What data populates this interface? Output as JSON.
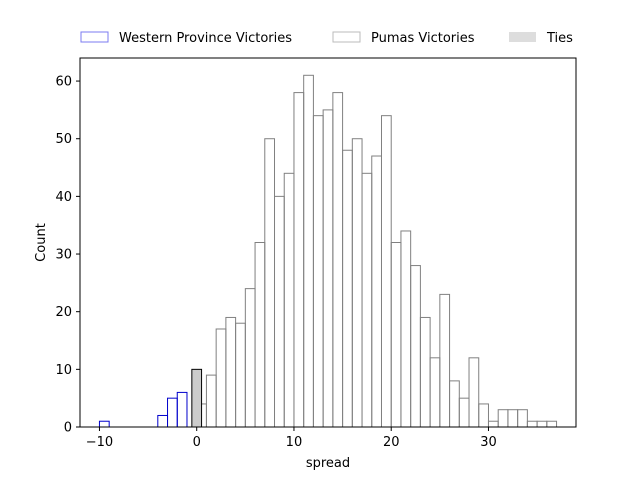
{
  "chart_data": {
    "type": "bar",
    "subtype": "histogram",
    "xlabel": "spread",
    "ylabel": "Count",
    "xlim": [
      -12,
      39
    ],
    "ylim": [
      0,
      64
    ],
    "xticks": [
      -10,
      0,
      10,
      20,
      30
    ],
    "yticks": [
      0,
      10,
      20,
      30,
      40,
      50,
      60
    ],
    "grid": false,
    "legend_position": "top, outside plot",
    "bin_width": 1,
    "series": [
      {
        "name": "Western Province Victories",
        "style": "step-outline",
        "color": "#0000cc",
        "legend_color": "#7b7bf0",
        "bins": [
          {
            "x0": -10,
            "x1": -9,
            "count": 1
          },
          {
            "x0": -9,
            "x1": -8,
            "count": 0
          },
          {
            "x0": -8,
            "x1": -7,
            "count": 0
          },
          {
            "x0": -7,
            "x1": -6,
            "count": 0
          },
          {
            "x0": -6,
            "x1": -5,
            "count": 0
          },
          {
            "x0": -5,
            "x1": -4,
            "count": 0
          },
          {
            "x0": -4,
            "x1": -3,
            "count": 2
          },
          {
            "x0": -3,
            "x1": -2,
            "count": 5
          },
          {
            "x0": -2,
            "x1": -1,
            "count": 6
          }
        ]
      },
      {
        "name": "Pumas Victories",
        "style": "outline",
        "color": "#808080",
        "legend_color": "#bbbbbb",
        "bins": [
          {
            "x0": 0,
            "x1": 1,
            "count": 4
          },
          {
            "x0": 1,
            "x1": 2,
            "count": 9
          },
          {
            "x0": 2,
            "x1": 3,
            "count": 17
          },
          {
            "x0": 3,
            "x1": 4,
            "count": 19
          },
          {
            "x0": 4,
            "x1": 5,
            "count": 18
          },
          {
            "x0": 5,
            "x1": 6,
            "count": 24
          },
          {
            "x0": 6,
            "x1": 7,
            "count": 32
          },
          {
            "x0": 7,
            "x1": 8,
            "count": 50
          },
          {
            "x0": 8,
            "x1": 9,
            "count": 40
          },
          {
            "x0": 9,
            "x1": 10,
            "count": 44
          },
          {
            "x0": 10,
            "x1": 11,
            "count": 58
          },
          {
            "x0": 11,
            "x1": 12,
            "count": 61
          },
          {
            "x0": 12,
            "x1": 13,
            "count": 54
          },
          {
            "x0": 13,
            "x1": 14,
            "count": 55
          },
          {
            "x0": 14,
            "x1": 15,
            "count": 58
          },
          {
            "x0": 15,
            "x1": 16,
            "count": 48
          },
          {
            "x0": 16,
            "x1": 17,
            "count": 50
          },
          {
            "x0": 17,
            "x1": 18,
            "count": 44
          },
          {
            "x0": 18,
            "x1": 19,
            "count": 47
          },
          {
            "x0": 19,
            "x1": 20,
            "count": 54
          },
          {
            "x0": 20,
            "x1": 21,
            "count": 32
          },
          {
            "x0": 21,
            "x1": 22,
            "count": 34
          },
          {
            "x0": 22,
            "x1": 23,
            "count": 28
          },
          {
            "x0": 23,
            "x1": 24,
            "count": 19
          },
          {
            "x0": 24,
            "x1": 25,
            "count": 12
          },
          {
            "x0": 25,
            "x1": 26,
            "count": 23
          },
          {
            "x0": 26,
            "x1": 27,
            "count": 8
          },
          {
            "x0": 27,
            "x1": 28,
            "count": 5
          },
          {
            "x0": 28,
            "x1": 29,
            "count": 12
          },
          {
            "x0": 29,
            "x1": 30,
            "count": 4
          },
          {
            "x0": 30,
            "x1": 31,
            "count": 1
          },
          {
            "x0": 31,
            "x1": 32,
            "count": 3
          },
          {
            "x0": 32,
            "x1": 33,
            "count": 3
          },
          {
            "x0": 33,
            "x1": 34,
            "count": 3
          },
          {
            "x0": 34,
            "x1": 35,
            "count": 1
          },
          {
            "x0": 35,
            "x1": 36,
            "count": 1
          },
          {
            "x0": 36,
            "x1": 37,
            "count": 1
          }
        ]
      },
      {
        "name": "Ties",
        "style": "filled",
        "color": "#cccccc",
        "edge_color": "#000000",
        "legend_color": "#dddddd",
        "bins": [
          {
            "x0": -0.5,
            "x1": 0.5,
            "count": 10
          }
        ]
      }
    ]
  }
}
